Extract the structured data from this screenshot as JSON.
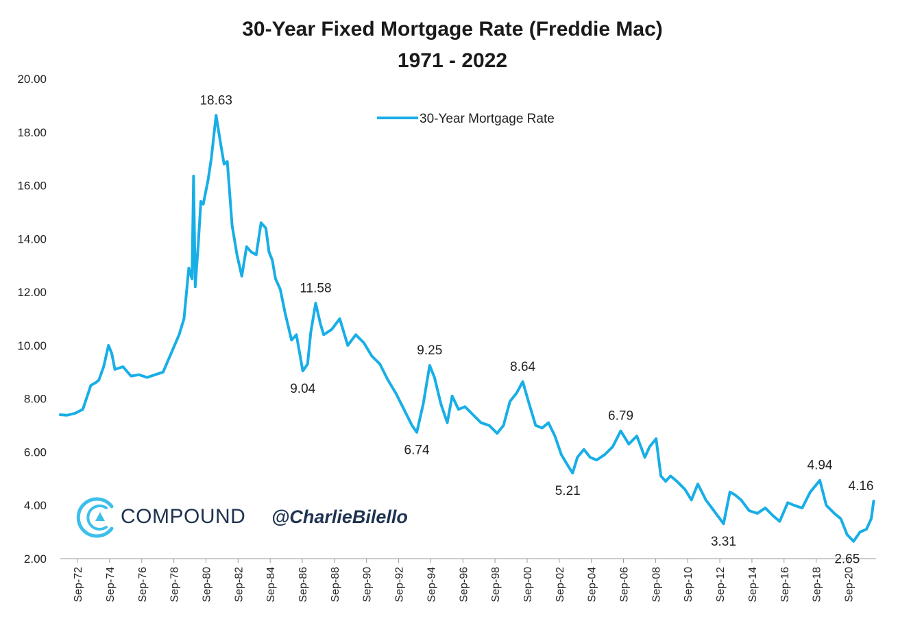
{
  "colors": {
    "line": "#18aee6",
    "text": "#222222",
    "brand": "#1e3350",
    "logo": "#3cc0ea"
  },
  "branding": {
    "logo_icon": "compound-c-logo-icon",
    "name": "COMPOUND",
    "handle": "@CharlieBilello"
  },
  "chart_data": {
    "type": "line",
    "title": "30-Year Fixed Mortgage Rate (Freddie Mac)",
    "subtitle": "1971 - 2022",
    "xlabel": "",
    "ylabel": "",
    "ylim": [
      2,
      20
    ],
    "xlim": [
      1971.6,
      2022.4
    ],
    "yticks": [
      "2.00",
      "4.00",
      "6.00",
      "8.00",
      "10.00",
      "12.00",
      "14.00",
      "16.00",
      "18.00",
      "20.00"
    ],
    "xticks": [
      {
        "label": "Sep-72",
        "x": 1972.67
      },
      {
        "label": "Sep-74",
        "x": 1974.67
      },
      {
        "label": "Sep-76",
        "x": 1976.67
      },
      {
        "label": "Sep-78",
        "x": 1978.67
      },
      {
        "label": "Sep-80",
        "x": 1980.67
      },
      {
        "label": "Sep-82",
        "x": 1982.67
      },
      {
        "label": "Sep-84",
        "x": 1984.67
      },
      {
        "label": "Sep-86",
        "x": 1986.67
      },
      {
        "label": "Sep-88",
        "x": 1988.67
      },
      {
        "label": "Sep-90",
        "x": 1990.67
      },
      {
        "label": "Sep-92",
        "x": 1992.67
      },
      {
        "label": "Sep-94",
        "x": 1994.67
      },
      {
        "label": "Sep-96",
        "x": 1996.67
      },
      {
        "label": "Sep-98",
        "x": 1998.67
      },
      {
        "label": "Sep-00",
        "x": 2000.67
      },
      {
        "label": "Sep-02",
        "x": 2002.67
      },
      {
        "label": "Sep-04",
        "x": 2004.67
      },
      {
        "label": "Sep-06",
        "x": 2006.67
      },
      {
        "label": "Sep-08",
        "x": 2008.67
      },
      {
        "label": "Sep-10",
        "x": 2010.67
      },
      {
        "label": "Sep-12",
        "x": 2012.67
      },
      {
        "label": "Sep-14",
        "x": 2014.67
      },
      {
        "label": "Sep-16",
        "x": 2016.67
      },
      {
        "label": "Sep-18",
        "x": 2018.67
      },
      {
        "label": "Sep-20",
        "x": 2020.67
      }
    ],
    "legend": {
      "position": "top-center",
      "entries": [
        "30-Year Mortgage Rate"
      ]
    },
    "series": [
      {
        "name": "30-Year Mortgage Rate",
        "x": [
          1971.6,
          1972.0,
          1972.5,
          1973.0,
          1973.5,
          1973.8,
          1974.0,
          1974.3,
          1974.6,
          1974.8,
          1975.0,
          1975.5,
          1976.0,
          1976.5,
          1977.0,
          1977.5,
          1978.0,
          1978.5,
          1979.0,
          1979.3,
          1979.6,
          1979.8,
          1979.9,
          1980.0,
          1980.2,
          1980.35,
          1980.5,
          1980.8,
          1981.0,
          1981.3,
          1981.6,
          1981.8,
          1982.0,
          1982.3,
          1982.6,
          1982.9,
          1983.2,
          1983.5,
          1983.8,
          1984.1,
          1984.4,
          1984.6,
          1984.8,
          1985.0,
          1985.3,
          1985.6,
          1986.0,
          1986.3,
          1986.7,
          1987.0,
          1987.2,
          1987.5,
          1987.8,
          1988.0,
          1988.5,
          1989.0,
          1989.5,
          1990.0,
          1990.5,
          1991.0,
          1991.5,
          1992.0,
          1992.5,
          1993.0,
          1993.5,
          1993.8,
          1994.2,
          1994.6,
          1994.9,
          1995.3,
          1995.7,
          1996.0,
          1996.4,
          1996.8,
          1997.3,
          1997.8,
          1998.3,
          1998.8,
          1999.2,
          1999.6,
          2000.0,
          2000.4,
          2000.8,
          2001.2,
          2001.6,
          2002.0,
          2002.4,
          2002.8,
          2003.2,
          2003.5,
          2003.8,
          2004.2,
          2004.6,
          2005.0,
          2005.5,
          2006.0,
          2006.5,
          2007.0,
          2007.5,
          2008.0,
          2008.3,
          2008.7,
          2009.0,
          2009.3,
          2009.6,
          2010.0,
          2010.5,
          2010.9,
          2011.3,
          2011.8,
          2012.3,
          2012.9,
          2013.3,
          2013.6,
          2014.0,
          2014.5,
          2015.0,
          2015.5,
          2016.0,
          2016.4,
          2016.9,
          2017.3,
          2017.8,
          2018.3,
          2018.9,
          2019.3,
          2019.8,
          2020.2,
          2020.6,
          2021.0,
          2021.4,
          2021.8,
          2022.1,
          2022.25
        ],
        "values": [
          7.4,
          7.38,
          7.45,
          7.6,
          8.5,
          8.6,
          8.7,
          9.2,
          10.0,
          9.7,
          9.1,
          9.2,
          8.85,
          8.9,
          8.8,
          8.9,
          9.0,
          9.7,
          10.4,
          11.0,
          12.9,
          12.5,
          16.35,
          12.2,
          13.9,
          15.4,
          15.3,
          16.2,
          17.0,
          18.63,
          17.5,
          16.8,
          16.9,
          14.5,
          13.4,
          12.6,
          13.7,
          13.5,
          13.4,
          14.6,
          14.4,
          13.5,
          13.2,
          12.5,
          12.1,
          11.2,
          10.2,
          10.4,
          9.04,
          9.3,
          10.5,
          11.58,
          10.8,
          10.4,
          10.6,
          11.0,
          10.0,
          10.4,
          10.1,
          9.6,
          9.3,
          8.7,
          8.2,
          7.6,
          7.0,
          6.74,
          7.8,
          9.25,
          8.8,
          7.8,
          7.1,
          8.1,
          7.6,
          7.7,
          7.4,
          7.1,
          7.0,
          6.7,
          7.0,
          7.9,
          8.2,
          8.64,
          7.8,
          7.0,
          6.9,
          7.1,
          6.6,
          5.9,
          5.5,
          5.21,
          5.8,
          6.1,
          5.8,
          5.7,
          5.9,
          6.2,
          6.79,
          6.3,
          6.6,
          5.8,
          6.2,
          6.5,
          5.1,
          4.9,
          5.1,
          4.9,
          4.6,
          4.2,
          4.8,
          4.2,
          3.8,
          3.31,
          4.5,
          4.4,
          4.2,
          3.8,
          3.7,
          3.9,
          3.6,
          3.4,
          4.1,
          4.0,
          3.9,
          4.5,
          4.94,
          4.0,
          3.7,
          3.5,
          2.9,
          2.65,
          3.0,
          3.1,
          3.5,
          4.16
        ]
      }
    ],
    "annotations": [
      {
        "label": "18.63",
        "x": 1981.3,
        "y": 18.63,
        "place": "above"
      },
      {
        "label": "11.58",
        "x": 1987.5,
        "y": 11.58,
        "place": "above"
      },
      {
        "label": "9.04",
        "x": 1986.7,
        "y": 9.04,
        "place": "below"
      },
      {
        "label": "9.25",
        "x": 1994.6,
        "y": 9.25,
        "place": "above"
      },
      {
        "label": "6.74",
        "x": 1993.8,
        "y": 6.74,
        "place": "below"
      },
      {
        "label": "8.64",
        "x": 2000.4,
        "y": 8.64,
        "place": "above"
      },
      {
        "label": "5.21",
        "x": 2003.2,
        "y": 5.21,
        "place": "below"
      },
      {
        "label": "6.79",
        "x": 2006.5,
        "y": 6.79,
        "place": "above"
      },
      {
        "label": "3.31",
        "x": 2012.9,
        "y": 3.31,
        "place": "below"
      },
      {
        "label": "4.94",
        "x": 2018.9,
        "y": 4.94,
        "place": "above"
      },
      {
        "label": "2.65",
        "x": 2020.6,
        "y": 2.65,
        "place": "below"
      },
      {
        "label": "4.16",
        "x": 2022.25,
        "y": 4.16,
        "place": "above"
      }
    ]
  }
}
